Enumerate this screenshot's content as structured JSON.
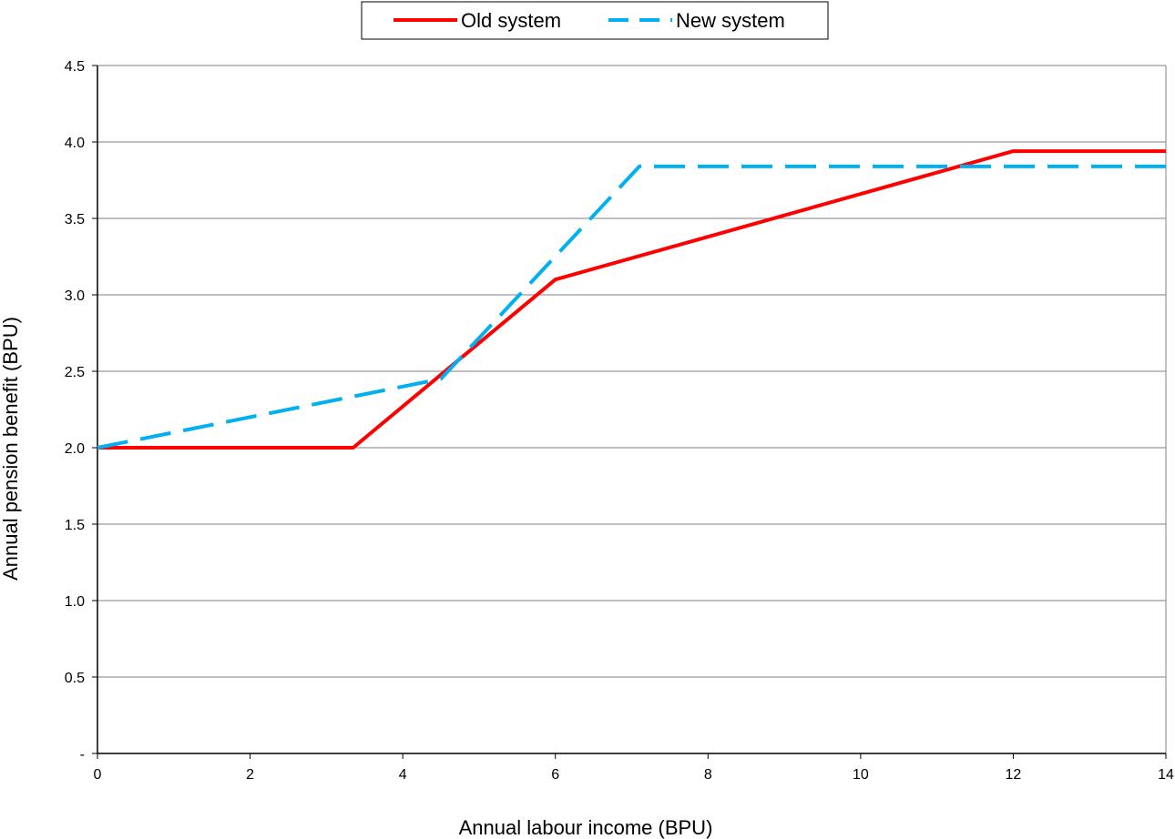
{
  "chart_data": {
    "type": "line",
    "xlabel": "Annual  labour income (BPU)",
    "ylabel": "Annual pension benefit (BPU)",
    "xlim": [
      0,
      14
    ],
    "ylim": [
      0,
      4.5
    ],
    "x_ticks": [
      0,
      2,
      4,
      6,
      8,
      10,
      12,
      14
    ],
    "x_tick_labels": [
      "0",
      "2",
      "4",
      "6",
      "8",
      "10",
      "12",
      "14"
    ],
    "y_ticks": [
      0,
      0.5,
      1.0,
      1.5,
      2.0,
      2.5,
      3.0,
      3.5,
      4.0,
      4.5
    ],
    "y_tick_labels": [
      "-",
      "0.5",
      "1.0",
      "1.5",
      "2.0",
      "2.5",
      "3.0",
      "3.5",
      "4.0",
      "4.5"
    ],
    "grid": "horizontal",
    "legend_position": "top-center",
    "series": [
      {
        "name": "Old system",
        "color": "#ff0000",
        "style": "solid",
        "x": [
          0,
          3.35,
          6.0,
          8.0,
          12.0,
          14.0
        ],
        "y": [
          2.0,
          2.0,
          3.1,
          3.38,
          3.94,
          3.94
        ]
      },
      {
        "name": "New system",
        "color": "#00b0f0",
        "style": "dashed",
        "x": [
          0,
          4.5,
          7.1,
          14.0
        ],
        "y": [
          2.0,
          2.45,
          3.84,
          3.84
        ]
      }
    ]
  }
}
